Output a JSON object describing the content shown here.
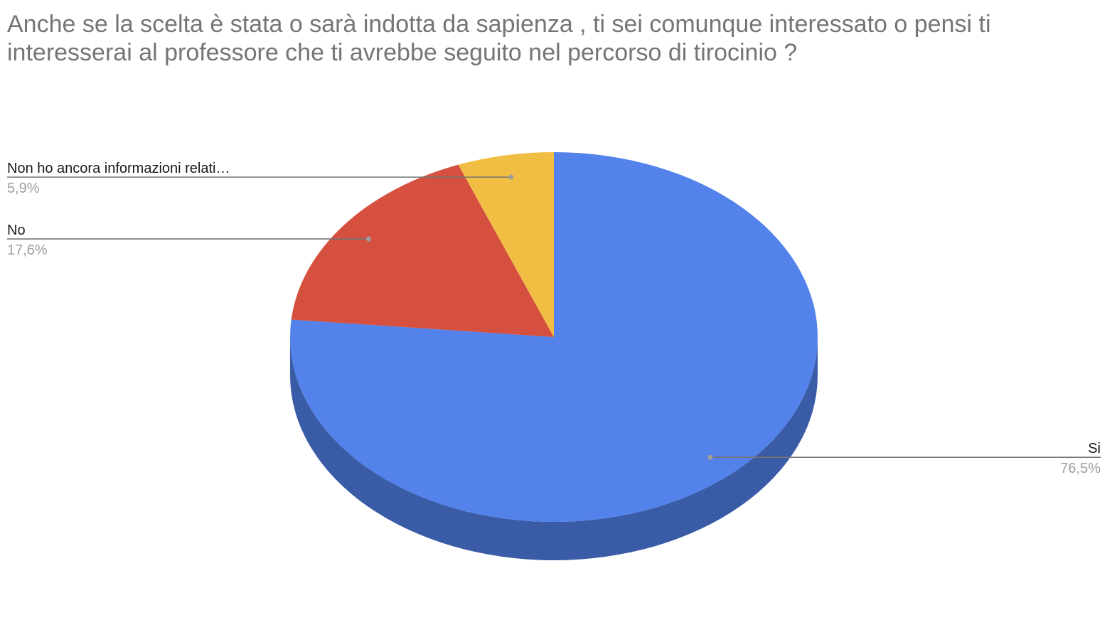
{
  "chart_data": {
    "type": "pie",
    "title": "Anche se la scelta è stata o sarà indotta da sapienza , ti sei comunque interessato o pensi ti interesserai al professore che ti avrebbe seguito nel percorso di tirocinio ?",
    "style": "3d",
    "start_angle_deg": 0,
    "direction": "clockwise",
    "legend": "labels",
    "slices": [
      {
        "label": "Si",
        "value": 76.5,
        "display": "76,5%",
        "color": "#5282ea",
        "side_color": "#3a5ba6"
      },
      {
        "label": "No",
        "value": 17.6,
        "display": "17,6%",
        "color": "#d65040",
        "side_color": "#a03c30"
      },
      {
        "label": "Non ho ancora informazioni relati…",
        "value": 5.9,
        "display": "5,9%",
        "color": "#f0be42",
        "side_color": "#b48e31"
      }
    ]
  }
}
